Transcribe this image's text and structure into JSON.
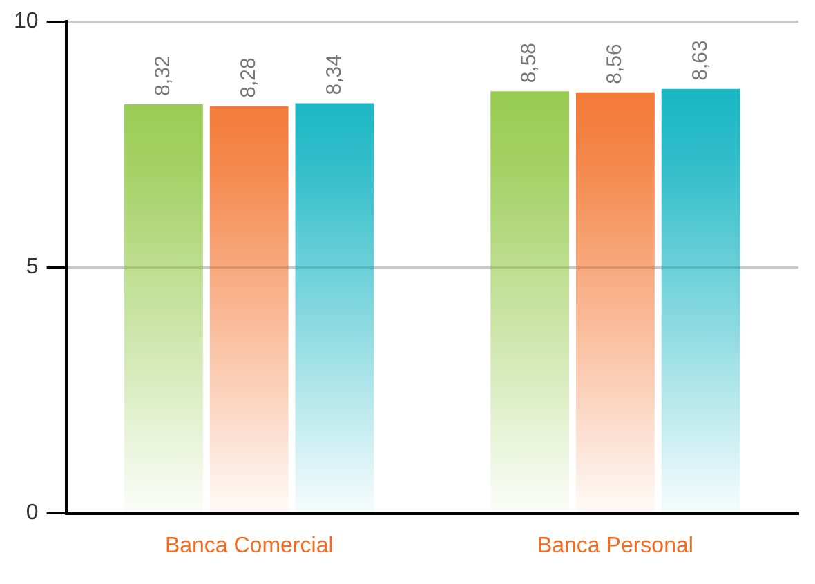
{
  "chart_data": {
    "type": "bar",
    "categories": [
      "Banca Comercial",
      "Banca Personal"
    ],
    "series": [
      {
        "color": "#8dc63f",
        "values": [
          8.32,
          8.58
        ],
        "value_labels": [
          "8,32",
          "8,58"
        ]
      },
      {
        "color": "#f26b21",
        "values": [
          8.28,
          8.56
        ],
        "value_labels": [
          "8,28",
          "8,56"
        ]
      },
      {
        "color": "#00aebd",
        "values": [
          8.34,
          8.63
        ],
        "value_labels": [
          "8,34",
          "8,63"
        ]
      }
    ],
    "ylim": [
      0,
      10
    ],
    "yticks": [
      0,
      5,
      10
    ],
    "grid": "y",
    "legend": false
  }
}
